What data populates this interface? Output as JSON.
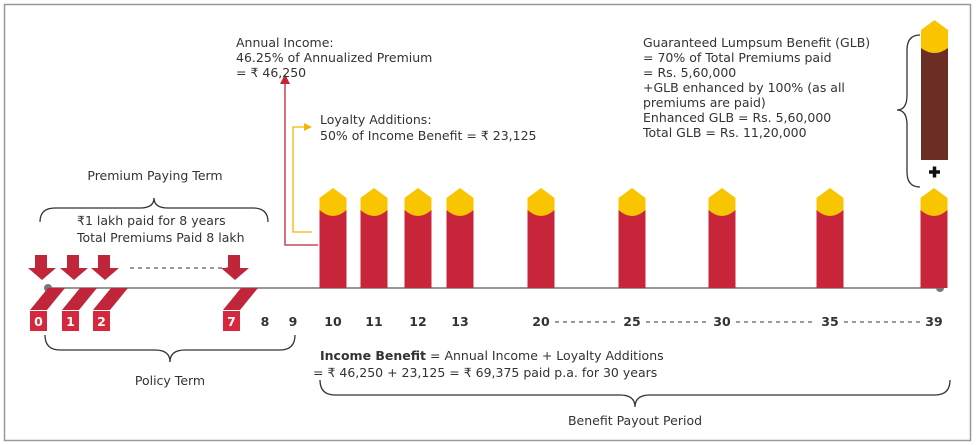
{
  "annual_income": {
    "lines": [
      "Annual Income:",
      "46.25% of Annualized Premium",
      "= ₹ 46,250"
    ]
  },
  "loyalty_additions": {
    "lines": [
      "Loyalty Additions:",
      "50% of Income Benefit = ₹ 23,125"
    ]
  },
  "glb": {
    "lines": [
      "Guaranteed Lumpsum Benefit (GLB)",
      "= 70% of Total Premiums paid",
      "= Rs. 5,60,000",
      "+GLB enhanced by 100% (as all",
      "premiums are paid)",
      "Enhanced GLB = Rs. 5,60,000",
      "Total GLB = Rs. 11,20,000"
    ]
  },
  "premium_paying_term": {
    "title": "Premium Paying Term",
    "lines": [
      "₹1 lakh paid for 8 years",
      "Total Premiums Paid 8 lakh"
    ]
  },
  "policy_term": "Policy Term",
  "years": [
    "0",
    "1",
    "2",
    "7",
    "8",
    "9",
    "10",
    "11",
    "12",
    "13",
    "20",
    "25",
    "30",
    "35",
    "39"
  ],
  "income_benefit": {
    "label": "Income Benefit",
    "formula": "= Annual Income + Loyalty Additions",
    "line2": "= ₹ 46,250 + 23,125 = ₹ 69,375 paid p.a. for 30 years"
  },
  "benefit_payout_period": "Benefit Payout Period"
}
